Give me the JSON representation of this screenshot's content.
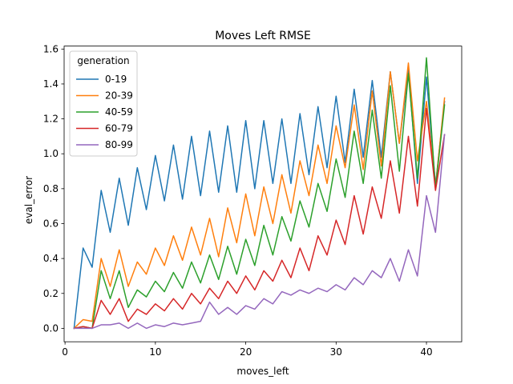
{
  "chart_data": {
    "type": "line",
    "title": "Moves Left RMSE",
    "xlabel": "moves_left",
    "ylabel": "eval_error",
    "xlim": [
      -0.1,
      43.9
    ],
    "ylim": [
      -0.077,
      1.617
    ],
    "xticks": [
      0,
      10,
      20,
      30,
      40
    ],
    "yticks": [
      0.0,
      0.2,
      0.4,
      0.6,
      0.8,
      1.0,
      1.2,
      1.4,
      1.6
    ],
    "xtick_labels": [
      "0",
      "10",
      "20",
      "30",
      "40"
    ],
    "ytick_labels": [
      "0.0",
      "0.2",
      "0.4",
      "0.6",
      "0.8",
      "1.0",
      "1.2",
      "1.4",
      "1.6"
    ],
    "grid": false,
    "legend_title": "generation",
    "legend_position": "upper-left",
    "x": [
      1,
      2,
      3,
      4,
      5,
      6,
      7,
      8,
      9,
      10,
      11,
      12,
      13,
      14,
      15,
      16,
      17,
      18,
      19,
      20,
      21,
      22,
      23,
      24,
      25,
      26,
      27,
      28,
      29,
      30,
      31,
      32,
      33,
      34,
      35,
      36,
      37,
      38,
      39,
      40,
      41,
      42
    ],
    "series": [
      {
        "name": "0-19",
        "color": "#1f77b4",
        "values": [
          0.0,
          0.46,
          0.35,
          0.79,
          0.55,
          0.86,
          0.59,
          0.92,
          0.68,
          0.99,
          0.73,
          1.05,
          0.74,
          1.1,
          0.76,
          1.13,
          0.78,
          1.16,
          0.78,
          1.19,
          0.8,
          1.19,
          0.83,
          1.2,
          0.83,
          1.23,
          0.88,
          1.27,
          0.92,
          1.33,
          0.95,
          1.37,
          0.98,
          1.42,
          0.98,
          1.47,
          1.06,
          1.48,
          0.83,
          1.44,
          0.82,
          1.3
        ]
      },
      {
        "name": "20-39",
        "color": "#ff7f0e",
        "values": [
          0.0,
          0.05,
          0.04,
          0.4,
          0.24,
          0.45,
          0.24,
          0.38,
          0.31,
          0.46,
          0.36,
          0.53,
          0.39,
          0.58,
          0.42,
          0.63,
          0.41,
          0.69,
          0.49,
          0.77,
          0.53,
          0.81,
          0.6,
          0.88,
          0.66,
          0.96,
          0.76,
          1.05,
          0.83,
          1.16,
          0.92,
          1.28,
          0.91,
          1.36,
          0.93,
          1.47,
          1.06,
          1.52,
          0.96,
          1.3,
          0.81,
          1.32
        ]
      },
      {
        "name": "40-59",
        "color": "#2ca02c",
        "values": [
          0.0,
          0.01,
          0.0,
          0.33,
          0.17,
          0.33,
          0.12,
          0.22,
          0.18,
          0.27,
          0.21,
          0.32,
          0.23,
          0.38,
          0.26,
          0.42,
          0.28,
          0.47,
          0.31,
          0.51,
          0.36,
          0.59,
          0.42,
          0.64,
          0.5,
          0.73,
          0.58,
          0.83,
          0.67,
          0.97,
          0.75,
          1.13,
          0.83,
          1.25,
          0.86,
          1.39,
          0.9,
          1.46,
          0.86,
          1.55,
          0.8,
          1.28
        ]
      },
      {
        "name": "60-79",
        "color": "#d62728",
        "values": [
          0.0,
          0.01,
          0.0,
          0.16,
          0.08,
          0.17,
          0.04,
          0.11,
          0.08,
          0.14,
          0.1,
          0.17,
          0.11,
          0.2,
          0.14,
          0.23,
          0.17,
          0.27,
          0.2,
          0.3,
          0.22,
          0.33,
          0.27,
          0.39,
          0.29,
          0.46,
          0.33,
          0.53,
          0.42,
          0.62,
          0.48,
          0.76,
          0.54,
          0.81,
          0.63,
          0.96,
          0.66,
          1.1,
          0.7,
          1.26,
          0.79,
          1.11
        ]
      },
      {
        "name": "80-99",
        "color": "#9467bd",
        "values": [
          0.0,
          0.0,
          0.0,
          0.02,
          0.02,
          0.03,
          0.0,
          0.03,
          0.0,
          0.02,
          0.01,
          0.03,
          0.02,
          0.03,
          0.04,
          0.15,
          0.08,
          0.12,
          0.08,
          0.13,
          0.11,
          0.17,
          0.14,
          0.21,
          0.19,
          0.22,
          0.2,
          0.23,
          0.21,
          0.25,
          0.22,
          0.29,
          0.25,
          0.33,
          0.29,
          0.4,
          0.27,
          0.45,
          0.3,
          0.76,
          0.55,
          1.11
        ]
      }
    ]
  }
}
